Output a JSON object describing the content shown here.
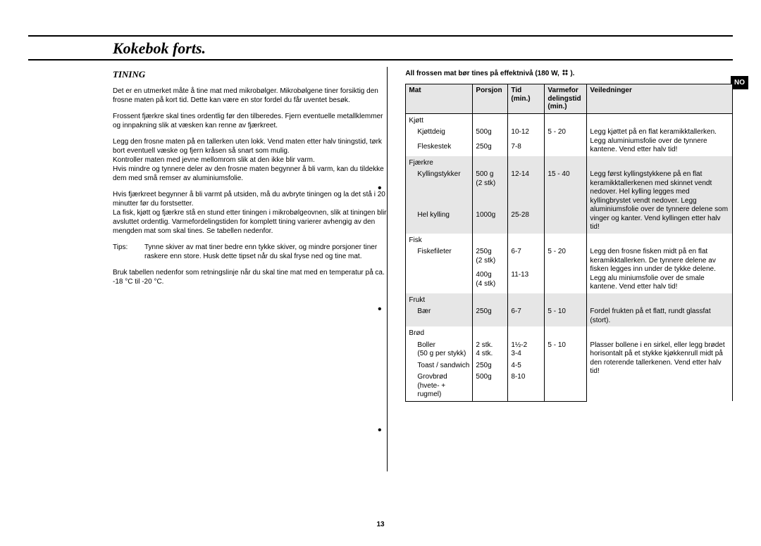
{
  "page": {
    "title": "Kokebok  forts.",
    "lang_tab": "NO",
    "page_number": "13"
  },
  "left": {
    "heading": "TINING",
    "p1": "Det er en utmerket måte å tine mat med mikrobølger. Mikrobølgene tiner forsiktig den frosne maten på kort tid. Dette kan være en stor fordel du får uventet besøk.",
    "p2": "Frossent fjærkre skal tines ordentlig før den tilberedes. Fjern eventuelle metallklemmer og innpakning slik at væsken kan renne av fjærkreet.",
    "p3": "Legg den frosne maten på en tallerken uten lokk. Vend maten etter halv tiningstid, tørk bort eventuell væske og fjern kråsen så snart som mulig.",
    "p4": "Kontroller maten med jevne mellomrom slik at den ikke blir varm.",
    "p5": "Hvis mindre og tynnere deler av den frosne maten begynner å bli varm, kan du tildekke dem med små remser av aluminiumsfolie.",
    "p6": "Hvis fjærkreet begynner å bli varmt på utsiden, må du avbryte tiningen og la det stå i 20 minutter før du forstsetter.",
    "p7": "La fisk, kjøtt og fjærkre stå en stund etter tiningen i mikrobølgeovnen, slik at tiningen blir avsluttet ordentlig. Varmefordelingstiden for komplett tining varierer avhengig av den mengden mat som skal tines. Se tabellen nedenfor.",
    "tips_label": "Tips:",
    "tips_text": "Tynne skiver av mat tiner bedre enn tykke skiver, og mindre porsjoner tiner raskere enn store. Husk dette tipset når du skal fryse ned og tine mat.",
    "p8": "Bruk tabellen nedenfor som retningslinje når du skal tine mat med en temperatur på ca. -18 °C til -20 °C."
  },
  "right": {
    "note_prefix": "All frossen mat bør tines på effektnivå (180 W, ",
    "note_suffix": " ).",
    "headers": {
      "mat": "Mat",
      "porsjon": "Porsjon",
      "tid": "Tid (min.)",
      "stand": "Varmefor delingstid (min.)",
      "guide": "Veiledninger"
    },
    "sections": [
      {
        "alt": false,
        "cat": "Kjøtt",
        "rows": [
          {
            "name": "Kjøttdeig",
            "p": "500g",
            "t": "10-12",
            "s": "5 - 20",
            "g": "Legg kjøttet på en flat keramikktallerken. Legg aluminiumsfolie over de tynnere kantene. Vend etter halv tid!",
            "grows": 2
          },
          {
            "name": "Fleskestek",
            "p": "250g",
            "t": "7-8",
            "s": "",
            "g": ""
          }
        ]
      },
      {
        "alt": true,
        "cat": "Fjærkre",
        "rows": [
          {
            "name": "Kyllingstykker",
            "p": "500 g (2 stk)",
            "t": "12-14",
            "s": "15 - 40",
            "g": "Legg først kyllingstykkene på en flat keramikktallerkenen med skinnet vendt nedover. Hel kylling legges med kyllingbrystet vendt nedover. Legg aluminiumsfolie over de tynnere delene som vinger og kanter. Vend kyllingen etter halv tid!",
            "grows": 2
          },
          {
            "name": "Hel kylling",
            "p": "1000g",
            "t": "25-28",
            "s": "",
            "g": ""
          }
        ]
      },
      {
        "alt": false,
        "cat": "Fisk",
        "rows": [
          {
            "name": "Fiskefileter",
            "p": "250g (2 stk)",
            "t": "6-7",
            "s": "5 - 20",
            "g": "Legg den frosne fisken midt på en flat keramikktallerken. De tynnere delene av fisken legges inn under de tykke delene. Legg alu miniumsfolie over de smale kantene. Vend  etter halv tid!",
            "grows": 2
          },
          {
            "name": "",
            "p": "400g (4 stk)",
            "t": "11-13",
            "s": "",
            "g": ""
          }
        ]
      },
      {
        "alt": true,
        "cat": "Frukt",
        "rows": [
          {
            "name": "Bær",
            "p": "250g",
            "t": "6-7",
            "s": "5  -  10",
            "g": "Fordel frukten på et flatt, rundt glassfat (stort).",
            "grows": 1
          }
        ]
      },
      {
        "alt": false,
        "cat": "Brød",
        "rows": [
          {
            "name": "Boller (50 g per stykk)",
            "p": "2 stk. 4 stk.",
            "t": "1½-2 3-4",
            "s": "5  -  10",
            "g": "Plasser bollene i en sirkel, eller legg brødet horisontalt på et stykke kjøkkenrull midt på den roterende tallerkenen. Vend etter halv tid!",
            "grows": 3
          },
          {
            "name": "Toast / sandwich",
            "p": "250g",
            "t": "4-5",
            "s": "",
            "g": ""
          },
          {
            "name": "Grovbrød (hvete- + rugmel)",
            "p": "500g",
            "t": "8-10",
            "s": "",
            "g": ""
          }
        ]
      }
    ]
  }
}
